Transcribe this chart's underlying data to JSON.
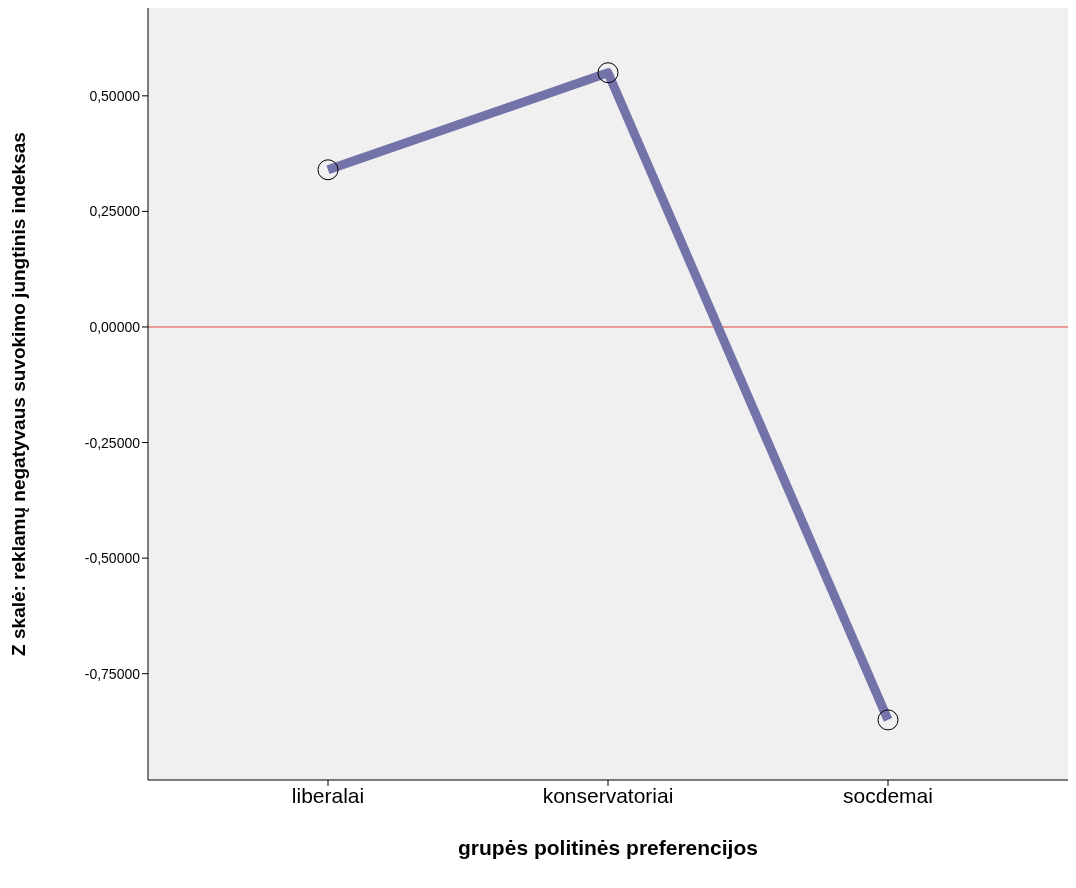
{
  "chart_data": {
    "type": "line",
    "xlabel": "grupės politinės preferencijos",
    "ylabel": "Z skalė: reklamų negatyvaus suvokimo jungtinis indeksas",
    "categories": [
      "liberalai",
      "konservatoriai",
      "socdemai"
    ],
    "series": [
      {
        "color": "#7373aa",
        "values": [
          0.34,
          0.55,
          -0.85
        ]
      }
    ],
    "marker": "circle",
    "line_style": "solid",
    "ylim": [
      -0.98,
      0.69
    ],
    "yticks": [
      {
        "value": 0.5,
        "label": "0,50000"
      },
      {
        "value": 0.25,
        "label": "0,25000"
      },
      {
        "value": 0,
        "label": "0,00000"
      },
      {
        "value": -0.25,
        "label": "-0,25000"
      },
      {
        "value": -0.5,
        "label": "-0,50000"
      },
      {
        "value": -0.75,
        "label": "-0,75000"
      }
    ],
    "ref_lines": [
      {
        "axis": "y",
        "value": 0,
        "color": "#e84040"
      }
    ]
  }
}
